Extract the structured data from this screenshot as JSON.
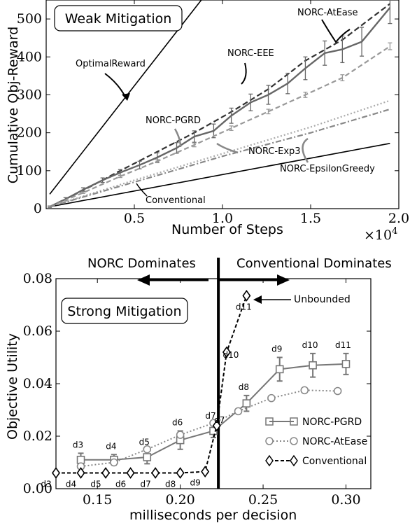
{
  "chart_data": [
    {
      "type": "line",
      "panel_label": "Weak Mitigation",
      "xlabel": "Number of Steps",
      "ylabel": "Cumulative Obj-Reward",
      "x_multiplier": "×10",
      "x_multiplier_exp": "4",
      "xlim": [
        0,
        2.0
      ],
      "ylim": [
        0,
        550
      ],
      "xticks": [
        0.5,
        1.0,
        1.5,
        2.0
      ],
      "xtick_labels": [
        "0.5",
        "1.0",
        "1.5",
        "2.0"
      ],
      "yticks": [
        0,
        100,
        200,
        300,
        400,
        500
      ],
      "ytick_labels": [
        "0",
        "100",
        "200",
        "300",
        "400",
        "500"
      ],
      "series": [
        {
          "name": "OptimalReward",
          "style": "solid-thin",
          "color": "#000000",
          "x": [
            0.02,
            0.88
          ],
          "y": [
            38,
            550
          ]
        },
        {
          "name": "Conventional",
          "style": "solid-thin",
          "color": "#000000",
          "x": [
            0.02,
            1.95
          ],
          "y": [
            5,
            172
          ]
        },
        {
          "name": "NORC-AtEase",
          "style": "dash-dark",
          "color": "#333333",
          "x": [
            0.02,
            0.21,
            0.42,
            0.63,
            0.84,
            1.05,
            1.26,
            1.47,
            1.68,
            1.95
          ],
          "y": [
            5,
            48,
            100,
            150,
            200,
            255,
            315,
            390,
            445,
            540
          ]
        },
        {
          "name": "NORC-PGRD",
          "style": "solid-gray-errbars",
          "color": "#666666",
          "x": [
            0.02,
            0.11,
            0.21,
            0.32,
            0.42,
            0.53,
            0.63,
            0.74,
            0.84,
            0.95,
            1.05,
            1.16,
            1.26,
            1.37,
            1.47,
            1.58,
            1.68,
            1.79,
            1.95
          ],
          "y": [
            5,
            25,
            50,
            75,
            95,
            115,
            135,
            160,
            190,
            205,
            245,
            280,
            300,
            330,
            370,
            410,
            420,
            440,
            530
          ],
          "err": [
            2,
            4,
            5,
            6,
            8,
            10,
            12,
            14,
            15,
            18,
            20,
            22,
            25,
            27,
            30,
            32,
            35,
            38,
            42
          ]
        },
        {
          "name": "NORC-EEE",
          "style": "dash-lightgray-errbars",
          "color": "#999999",
          "x": [
            0.02,
            0.21,
            0.42,
            0.63,
            0.84,
            1.05,
            1.26,
            1.47,
            1.68,
            1.95
          ],
          "y": [
            5,
            42,
            85,
            125,
            168,
            212,
            256,
            300,
            345,
            428
          ],
          "err": [
            1,
            2,
            3,
            4,
            5,
            6,
            6,
            7,
            8,
            9
          ]
        },
        {
          "name": "NORC-Exp3",
          "style": "dotted-lightgray",
          "color": "#aaaaaa",
          "x": [
            0.02,
            0.5,
            1.0,
            1.5,
            1.95
          ],
          "y": [
            5,
            75,
            145,
            215,
            285
          ]
        },
        {
          "name": "NORC-EpsilonGreedy",
          "style": "dashdot-gray",
          "color": "#888888",
          "x": [
            0.02,
            0.5,
            1.0,
            1.5,
            1.95
          ],
          "y": [
            5,
            70,
            138,
            200,
            262
          ]
        }
      ],
      "annotations": [
        "OptimalReward",
        "NORC-AtEase",
        "NORC-EEE",
        "NORC-PGRD",
        "NORC-Exp3",
        "NORC-EpsilonGreedy",
        "Conventional"
      ]
    },
    {
      "type": "line",
      "panel_label": "Strong Mitigation",
      "xlabel": "milliseconds per decision",
      "ylabel": "Objective Utility",
      "xlim": [
        0.125,
        0.315
      ],
      "ylim": [
        0.0,
        0.08
      ],
      "xticks": [
        0.15,
        0.2,
        0.25,
        0.3
      ],
      "xtick_labels": [
        "0.15",
        "0.20",
        "0.25",
        "0.30"
      ],
      "yticks": [
        0.0,
        0.02,
        0.04,
        0.06,
        0.08
      ],
      "ytick_labels": [
        "0.00",
        "0.02",
        "0.04",
        "0.06",
        "0.08"
      ],
      "divider_x": 0.223,
      "left_region_label": "NORC Dominates",
      "right_region_label": "Conventional Dominates",
      "unbounded_label": "Unbounded",
      "legend": [
        "NORC-PGRD",
        "NORC-AtEase",
        "Conventional"
      ],
      "series": [
        {
          "name": "NORC-PGRD",
          "marker": "square",
          "style": "solid-gray",
          "color": "#777777",
          "x": [
            0.14,
            0.16,
            0.18,
            0.2,
            0.22,
            0.24,
            0.26,
            0.28,
            0.3
          ],
          "y": [
            0.011,
            0.011,
            0.012,
            0.0185,
            0.022,
            0.0325,
            0.0455,
            0.047,
            0.0475
          ],
          "err": [
            0.0025,
            0.002,
            0.0025,
            0.0035,
            0.0025,
            0.003,
            0.0045,
            0.0045,
            0.004
          ],
          "labels": [
            "d3",
            "d4",
            "d5",
            "d6",
            "d7",
            "d8",
            "d9",
            "d10",
            "d11"
          ]
        },
        {
          "name": "NORC-AtEase",
          "marker": "circle",
          "style": "dotted-gray",
          "color": "#888888",
          "x": [
            0.14,
            0.16,
            0.18,
            0.2,
            0.22,
            0.235,
            0.255,
            0.275,
            0.295
          ],
          "y": [
            0.0085,
            0.01,
            0.015,
            0.0205,
            0.025,
            0.0295,
            0.0345,
            0.0375,
            0.0372
          ]
        },
        {
          "name": "Conventional",
          "marker": "diamond",
          "style": "dashed-black",
          "color": "#000000",
          "x": [
            0.125,
            0.14,
            0.155,
            0.17,
            0.185,
            0.2,
            0.215,
            0.222,
            0.228,
            0.24
          ],
          "y": [
            0.006,
            0.006,
            0.006,
            0.006,
            0.006,
            0.006,
            0.0065,
            0.024,
            0.052,
            0.0735
          ],
          "labels": [
            "d3",
            "d4",
            "d5",
            "d6",
            "d7",
            "d8",
            "d9",
            "d7",
            "d10",
            "d11"
          ]
        }
      ]
    }
  ]
}
